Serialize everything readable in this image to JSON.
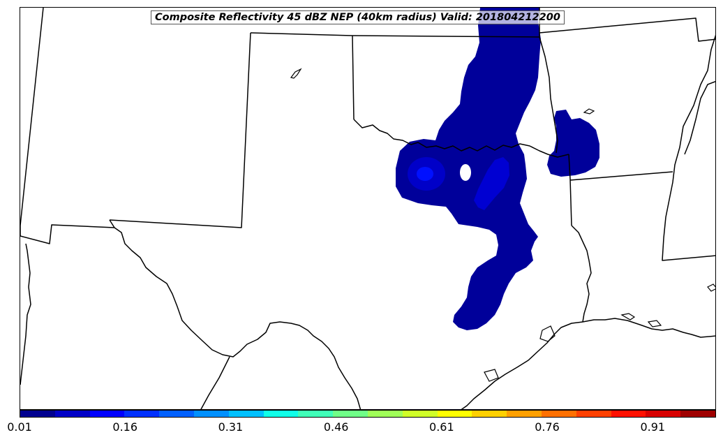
{
  "map": {
    "title": "Composite Reflectivity 45 dBZ NEP (40km radius) Valid: 201804212200",
    "field_description": "Neighborhood ensemble probability of composite reflectivity exceeding 45 dBZ"
  },
  "colorbar": {
    "colors": [
      "#00008f",
      "#0000c7",
      "#0000ff",
      "#0030ff",
      "#0060ff",
      "#0090ff",
      "#00c0ff",
      "#10ffe8",
      "#40ffb8",
      "#70ff88",
      "#a0ff58",
      "#d0ff28",
      "#ffff00",
      "#ffd000",
      "#ffa000",
      "#ff7000",
      "#ff4000",
      "#ff1000",
      "#d80000",
      "#9f0000"
    ],
    "ticks": [
      "0.01",
      "0.16",
      "0.31",
      "0.46",
      "0.61",
      "0.76",
      "0.91"
    ],
    "tick_values": [
      0.01,
      0.16,
      0.31,
      0.46,
      0.61,
      0.76,
      0.91
    ],
    "min": 0.01,
    "max": 1.0
  },
  "colors": {
    "prob_low": "#00009a",
    "prob_mid": "#0000d0",
    "prob_high": "#0010ff",
    "boundaries": "#000000"
  }
}
